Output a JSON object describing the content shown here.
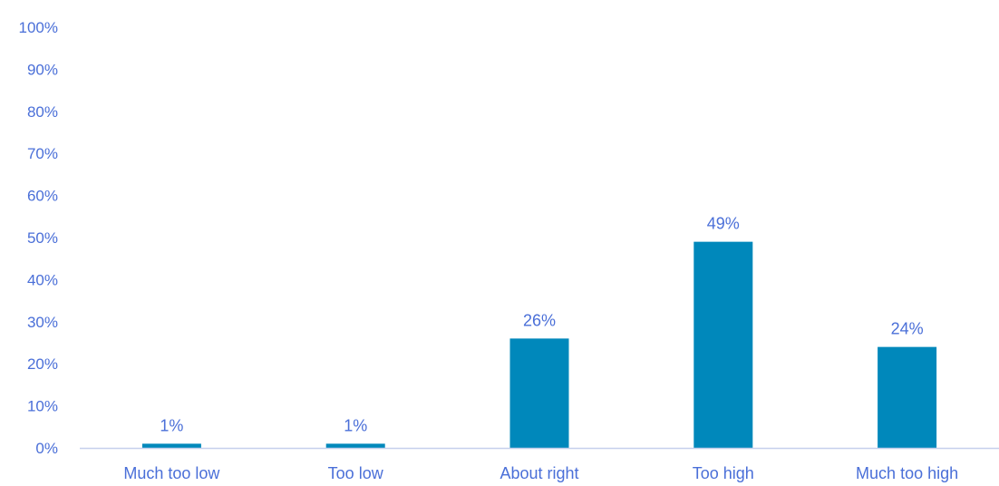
{
  "chart_data": {
    "type": "bar",
    "categories": [
      "Much too low",
      "Too low",
      "About right",
      "Too high",
      "Much too high"
    ],
    "values": [
      1,
      1,
      26,
      49,
      24
    ],
    "value_labels": [
      "1%",
      "1%",
      "26%",
      "49%",
      "24%"
    ],
    "ylim": [
      0,
      100
    ],
    "y_ticks": [
      0,
      10,
      20,
      30,
      40,
      50,
      60,
      70,
      80,
      90,
      100
    ],
    "y_tick_labels": [
      "0%",
      "10%",
      "20%",
      "30%",
      "40%",
      "50%",
      "60%",
      "70%",
      "80%",
      "90%",
      "100%"
    ],
    "title": "",
    "xlabel": "",
    "ylabel": "",
    "grid": false,
    "legend": "none",
    "colors": {
      "bar": "#0088BB",
      "text": "#4A6FD8",
      "axis": "#C6D0EC"
    }
  }
}
